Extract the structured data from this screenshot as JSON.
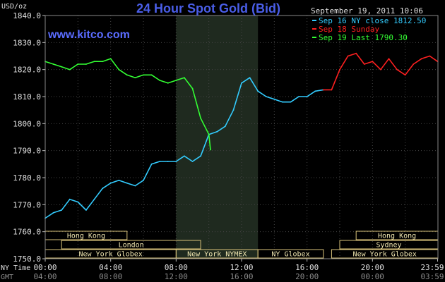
{
  "chart_data": {
    "type": "line",
    "title": "24 Hour Spot Gold (Bid)",
    "watermark": "www.kitco.com",
    "ylabel": "USD/oz",
    "timestamp": "September 19, 2011 10:06",
    "ylim": [
      1750.0,
      1840.0
    ],
    "y_ticks": [
      "1750.0",
      "1760.0",
      "1770.0",
      "1780.0",
      "1790.0",
      "1800.0",
      "1810.0",
      "1820.0",
      "1830.0",
      "1840.0"
    ],
    "x_row_labels": [
      "NY Time",
      "GMT"
    ],
    "x_ticks_ny": [
      "00:00",
      "04:00",
      "08:00",
      "12:00",
      "16:00",
      "20:00",
      "23:59"
    ],
    "x_ticks_gmt": [
      "04:00",
      "08:00",
      "12:00",
      "16:00",
      "20:00",
      "00:00",
      "03:59"
    ],
    "grid": true,
    "legend_position": "top-right",
    "legend": [
      {
        "text": "Sep 16 NY close 1812.50",
        "color": "#33ccff"
      },
      {
        "text": "Sep 18 Sunday",
        "color": "#ff2020"
      },
      {
        "text": "Sep 19 Last 1790.30",
        "color": "#33ff33"
      }
    ],
    "series": [
      {
        "name": "Sep 16 NY close 1812.50",
        "color": "#33ccff",
        "x": [
          0.0,
          0.5,
          1.0,
          1.5,
          2.0,
          2.5,
          3.0,
          3.5,
          4.0,
          4.5,
          5.0,
          5.5,
          6.0,
          6.5,
          7.0,
          7.5,
          8.0,
          8.5,
          9.0,
          9.5,
          10.0,
          10.5,
          11.0,
          11.5,
          12.0,
          12.5,
          13.0,
          13.5,
          14.0,
          14.5,
          15.0,
          15.5,
          16.0,
          16.5,
          17.0
        ],
        "y": [
          1765,
          1767,
          1768,
          1772,
          1771,
          1768,
          1772,
          1776,
          1778,
          1779,
          1778,
          1777,
          1779,
          1785,
          1786,
          1786,
          1786,
          1788,
          1786,
          1788,
          1796,
          1797,
          1799,
          1805,
          1815,
          1817,
          1812,
          1810,
          1809,
          1808,
          1808,
          1810,
          1810,
          1812,
          1812.5
        ]
      },
      {
        "name": "Sep 18 Sunday",
        "color": "#ff2020",
        "x": [
          17.0,
          17.5,
          18.0,
          18.5,
          19.0,
          19.5,
          20.0,
          20.5,
          21.0,
          21.5,
          22.0,
          22.5,
          23.0,
          23.5,
          23.98
        ],
        "y": [
          1812.5,
          1812.5,
          1820,
          1825,
          1826,
          1822,
          1823,
          1820,
          1824,
          1820,
          1818,
          1822,
          1824,
          1825,
          1823
        ]
      },
      {
        "name": "Sep 19 Last 1790.30",
        "color": "#33ff33",
        "x": [
          0.0,
          0.5,
          1.0,
          1.5,
          2.0,
          2.5,
          3.0,
          3.5,
          4.0,
          4.5,
          5.0,
          5.5,
          6.0,
          6.5,
          7.0,
          7.5,
          8.0,
          8.5,
          9.0,
          9.5,
          10.0,
          10.1
        ],
        "y": [
          1823,
          1822,
          1821,
          1820,
          1822,
          1822,
          1823,
          1823,
          1824,
          1820,
          1818,
          1817,
          1818,
          1818,
          1816,
          1815,
          1816,
          1817,
          1813,
          1802,
          1796,
          1790.3
        ]
      }
    ],
    "highlight_region": {
      "x_from": 8.0,
      "x_to": 13.0,
      "label": "New York NYMEX session"
    },
    "sessions": [
      {
        "row": 0,
        "label": "Hong Kong",
        "x_from": 0.0,
        "x_to": 5.0
      },
      {
        "row": 0,
        "label": "Hong Kong",
        "x_from": 19.0,
        "x_to": 24.0
      },
      {
        "row": 1,
        "label": "London",
        "x_from": 1.0,
        "x_to": 9.5
      },
      {
        "row": 1,
        "label": "Sydney",
        "x_from": 18.0,
        "x_to": 24.0
      },
      {
        "row": 2,
        "label": "New York Globex",
        "x_from": 0.0,
        "x_to": 8.0
      },
      {
        "row": 2,
        "label": "New York NYMEX",
        "x_from": 8.0,
        "x_to": 13.0
      },
      {
        "row": 2,
        "label": "NY Globex",
        "x_from": 13.0,
        "x_to": 17.0
      },
      {
        "row": 2,
        "label": "New York Globex",
        "x_from": 17.5,
        "x_to": 24.0
      }
    ]
  }
}
